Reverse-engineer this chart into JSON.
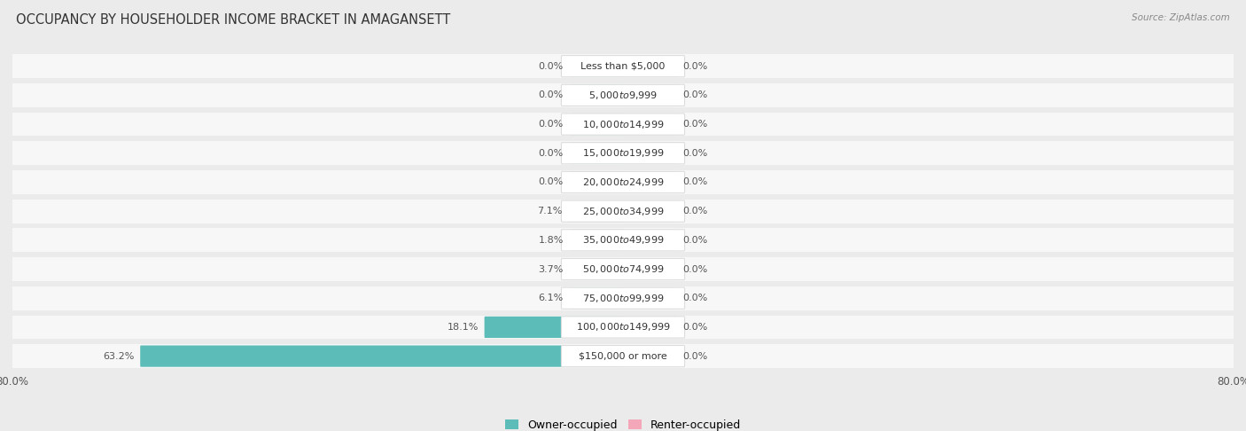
{
  "title": "OCCUPANCY BY HOUSEHOLDER INCOME BRACKET IN AMAGANSETT",
  "source": "Source: ZipAtlas.com",
  "categories": [
    "Less than $5,000",
    "$5,000 to $9,999",
    "$10,000 to $14,999",
    "$15,000 to $19,999",
    "$20,000 to $24,999",
    "$25,000 to $34,999",
    "$35,000 to $49,999",
    "$50,000 to $74,999",
    "$75,000 to $99,999",
    "$100,000 to $149,999",
    "$150,000 or more"
  ],
  "owner_values": [
    0.0,
    0.0,
    0.0,
    0.0,
    0.0,
    7.1,
    1.8,
    3.7,
    6.1,
    18.1,
    63.2
  ],
  "renter_values": [
    0.0,
    0.0,
    0.0,
    0.0,
    0.0,
    0.0,
    0.0,
    0.0,
    0.0,
    0.0,
    0.0
  ],
  "owner_color": "#5bbcb8",
  "renter_color": "#f4a7b9",
  "background_color": "#ebebeb",
  "row_bg_color": "#f7f7f7",
  "axis_max": 80.0,
  "min_bar_width": 7.0,
  "label_color": "#555555",
  "title_color": "#333333",
  "legend_owner": "Owner-occupied",
  "legend_renter": "Renter-occupied"
}
